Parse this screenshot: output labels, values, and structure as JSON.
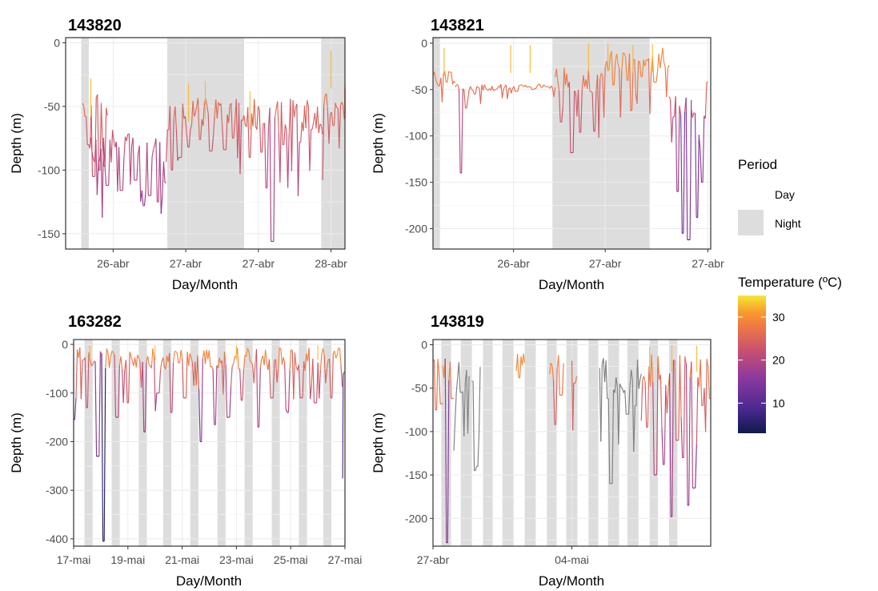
{
  "chart_data": [
    {
      "type": "line",
      "title": "143820",
      "xlabel": "Day/Month",
      "ylabel": "Depth (m)",
      "ylim": [
        -162,
        4
      ],
      "xlim": [
        0,
        1
      ],
      "yticks": [
        0,
        -50,
        -100,
        -150
      ],
      "xticks": [
        {
          "x": 0.17,
          "label": "26-abr"
        },
        {
          "x": 0.43,
          "label": "27-abr"
        },
        {
          "x": 0.69,
          "label": "27-abr"
        },
        {
          "x": 0.95,
          "label": "28-abr"
        }
      ],
      "night_periods": [
        [
          0.056,
          0.083
        ],
        [
          0.364,
          0.639
        ],
        [
          0.915,
          1.08
        ]
      ],
      "segments": [
        {
          "x0": 0.06,
          "x1": 0.15,
          "base": -50,
          "amp": 10,
          "dips": [
            [
              0.07,
              -58
            ],
            [
              0.08,
              -80
            ],
            [
              0.1,
              -105
            ],
            [
              0.12,
              -100
            ],
            [
              0.14,
              -97
            ]
          ]
        },
        {
          "x0": 0.09,
          "x1": 0.36,
          "base": -82,
          "amp": 14,
          "dips": [
            [
              0.15,
              -112
            ],
            [
              0.2,
              -116
            ],
            [
              0.25,
              -108
            ],
            [
              0.28,
              -128
            ],
            [
              0.3,
              -120
            ],
            [
              0.33,
              -125
            ],
            [
              0.36,
              -110
            ]
          ]
        },
        {
          "x0": 0.36,
          "x1": 0.62,
          "base": -58,
          "amp": 16,
          "dips": [
            [
              0.38,
              -100
            ],
            [
              0.41,
              -90
            ],
            [
              0.44,
              -82
            ],
            [
              0.48,
              -76
            ],
            [
              0.52,
              -85
            ],
            [
              0.57,
              -84
            ],
            [
              0.6,
              -75
            ]
          ]
        },
        {
          "x0": 0.62,
          "x1": 0.92,
          "base": -58,
          "amp": 14,
          "dips": [
            [
              0.66,
              -90
            ],
            [
              0.7,
              -86
            ],
            [
              0.72,
              -114
            ],
            [
              0.74,
              -156
            ],
            [
              0.78,
              -80
            ],
            [
              0.84,
              -78
            ],
            [
              0.88,
              -68
            ]
          ]
        },
        {
          "x0": 0.92,
          "x1": 1.08,
          "base": -46,
          "amp": 14,
          "dips": [
            [
              0.96,
              -65
            ],
            [
              1.0,
              -60
            ],
            [
              1.04,
              -58
            ]
          ]
        }
      ],
      "spikes": [
        [
          0.09,
          -28
        ],
        [
          0.44,
          -32
        ],
        [
          0.5,
          -30
        ],
        [
          0.66,
          -38
        ],
        [
          0.95,
          -6
        ],
        [
          1.01,
          -2
        ]
      ]
    },
    {
      "type": "line",
      "title": "143821",
      "xlabel": "Day/Month",
      "ylabel": "Depth (m)",
      "ylim": [
        -222,
        6
      ],
      "xlim": [
        0,
        1
      ],
      "yticks": [
        0,
        -50,
        -100,
        -150,
        -200
      ],
      "xticks": [
        {
          "x": 0.29,
          "label": "26-abr"
        },
        {
          "x": 0.62,
          "label": "27-abr"
        },
        {
          "x": 0.99,
          "label": "27-abr"
        }
      ],
      "night_periods": [
        [
          -0.01,
          0.025
        ],
        [
          0.43,
          0.78
        ]
      ],
      "segments": [
        {
          "x0": 0.0,
          "x1": 0.08,
          "base": -38,
          "amp": 8,
          "dips": [
            [
              0.02,
              -46
            ],
            [
              0.05,
              -42
            ]
          ]
        },
        {
          "x0": 0.08,
          "x1": 0.24,
          "base": -48,
          "amp": 4,
          "dips": [
            [
              0.1,
              -140
            ],
            [
              0.12,
              -70
            ],
            [
              0.15,
              -55
            ]
          ]
        },
        {
          "x0": 0.24,
          "x1": 0.44,
          "base": -47,
          "amp": 3,
          "dips": [
            [
              0.3,
              -52
            ],
            [
              0.36,
              -50
            ]
          ]
        },
        {
          "x0": 0.44,
          "x1": 0.62,
          "base": -40,
          "amp": 14,
          "dips": [
            [
              0.46,
              -85
            ],
            [
              0.5,
              -118
            ],
            [
              0.53,
              -96
            ],
            [
              0.58,
              -95
            ]
          ]
        },
        {
          "x0": 0.62,
          "x1": 0.85,
          "base": -18,
          "amp": 14,
          "dips": [
            [
              0.65,
              -45
            ],
            [
              0.7,
              -40
            ],
            [
              0.75,
              -36
            ],
            [
              0.8,
              -42
            ]
          ]
        },
        {
          "x0": 0.85,
          "x1": 0.93,
          "base": -68,
          "amp": 12,
          "dips": [
            [
              0.88,
              -160
            ],
            [
              0.9,
              -205
            ],
            [
              0.92,
              -212
            ]
          ]
        },
        {
          "x0": 0.93,
          "x1": 0.99,
          "base": -100,
          "amp": 30,
          "dips": [
            [
              0.95,
              -188
            ],
            [
              0.97,
              -150
            ],
            [
              0.99,
              -42
            ]
          ]
        }
      ],
      "spikes": [
        [
          0.04,
          -5
        ],
        [
          0.28,
          -2
        ],
        [
          0.35,
          -2
        ],
        [
          0.56,
          0
        ],
        [
          0.63,
          0
        ],
        [
          0.72,
          -2
        ],
        [
          0.79,
          -1
        ]
      ]
    },
    {
      "type": "line",
      "title": "163282",
      "xlabel": "Day/Month",
      "ylabel": "Depth (m)",
      "ylim": [
        -415,
        10
      ],
      "xlim": [
        0,
        1
      ],
      "yticks": [
        0,
        -100,
        -200,
        -300,
        -400
      ],
      "xticks": [
        {
          "x": 0.0,
          "label": "17-mai"
        },
        {
          "x": 0.2,
          "label": "19-mai"
        },
        {
          "x": 0.4,
          "label": "21-mai"
        },
        {
          "x": 0.6,
          "label": "23-mai"
        },
        {
          "x": 0.8,
          "label": "25-mai"
        },
        {
          "x": 1.0,
          "label": "27-mai"
        }
      ],
      "night_periods": [
        [
          -0.04,
          -0.01
        ],
        [
          0.04,
          0.07
        ],
        [
          0.14,
          0.17
        ],
        [
          0.24,
          0.27
        ],
        [
          0.33,
          0.36
        ],
        [
          0.43,
          0.46
        ],
        [
          0.53,
          0.56
        ],
        [
          0.63,
          0.66
        ],
        [
          0.73,
          0.76
        ],
        [
          0.83,
          0.86
        ],
        [
          0.92,
          0.95
        ]
      ],
      "segments": [
        {
          "x0": -0.01,
          "x1": 0.99,
          "base": -30,
          "amp": 24,
          "dips": [
            [
              0.0,
              -155
            ],
            [
              0.05,
              -130
            ],
            [
              0.09,
              -230
            ],
            [
              0.11,
              -405
            ],
            [
              0.16,
              -150
            ],
            [
              0.2,
              -120
            ],
            [
              0.26,
              -180
            ],
            [
              0.31,
              -100
            ],
            [
              0.36,
              -140
            ],
            [
              0.41,
              -110
            ],
            [
              0.47,
              -200
            ],
            [
              0.52,
              -165
            ],
            [
              0.57,
              -150
            ],
            [
              0.62,
              -115
            ],
            [
              0.68,
              -170
            ],
            [
              0.73,
              -110
            ],
            [
              0.79,
              -140
            ],
            [
              0.84,
              -110
            ],
            [
              0.89,
              -120
            ],
            [
              0.95,
              -110
            ]
          ]
        },
        {
          "x0": 0.99,
          "x1": 1.0,
          "base": -60,
          "amp": 5,
          "dips": [
            [
              0.99,
              -275
            ]
          ]
        }
      ],
      "spikes": [
        [
          0.06,
          -3
        ],
        [
          0.3,
          -2
        ],
        [
          0.6,
          -2
        ],
        [
          0.9,
          -2
        ]
      ]
    },
    {
      "type": "line",
      "title": "143819",
      "xlabel": "Day/Month",
      "ylabel": "Depth (m)",
      "ylim": [
        -232,
        6
      ],
      "xlim": [
        0,
        1
      ],
      "yticks": [
        0,
        -50,
        -100,
        -150,
        -200
      ],
      "xticks": [
        {
          "x": 0.0,
          "label": "27-abr"
        },
        {
          "x": 0.5,
          "label": "04-mai"
        }
      ],
      "night_periods": [
        [
          -0.05,
          -0.01
        ],
        [
          0.03,
          0.065
        ],
        [
          0.1,
          0.14
        ],
        [
          0.18,
          0.215
        ],
        [
          0.25,
          0.29
        ],
        [
          0.33,
          0.37
        ],
        [
          0.41,
          0.445
        ],
        [
          0.48,
          0.52
        ],
        [
          0.56,
          0.595
        ],
        [
          0.63,
          0.67
        ],
        [
          0.7,
          0.74
        ],
        [
          0.78,
          0.81
        ],
        [
          0.85,
          0.88
        ]
      ],
      "segments": [
        {
          "x0": 0.0,
          "x1": 0.035,
          "base": -25,
          "amp": 14,
          "dips": [
            [
              0.01,
              -75
            ],
            [
              0.03,
              -68
            ]
          ]
        },
        {
          "x0": 0.035,
          "x1": 0.075,
          "base": -30,
          "amp": 16,
          "dips": [
            [
              0.05,
              -228
            ],
            [
              0.07,
              -62
            ]
          ]
        },
        {
          "x0": 0.075,
          "x1": 0.13,
          "base": -35,
          "amp": 20,
          "missing": true,
          "dips": [
            [
              0.1,
              -55
            ]
          ]
        },
        {
          "x0": 0.14,
          "x1": 0.17,
          "base": -40,
          "amp": 20,
          "missing": true,
          "dips": [
            [
              0.15,
              -145
            ],
            [
              0.16,
              -140
            ]
          ]
        },
        {
          "x0": 0.3,
          "x1": 0.33,
          "base": -20,
          "amp": 14,
          "dips": [
            [
              0.31,
              -38
            ]
          ]
        },
        {
          "x0": 0.42,
          "x1": 0.47,
          "base": -30,
          "amp": 20,
          "dips": [
            [
              0.44,
              -92
            ],
            [
              0.46,
              -58
            ]
          ]
        },
        {
          "x0": 0.5,
          "x1": 0.52,
          "base": -30,
          "amp": 18,
          "dips": [
            [
              0.51,
              -44
            ]
          ]
        },
        {
          "x0": 0.6,
          "x1": 0.75,
          "base": -35,
          "amp": 22,
          "missing": true,
          "dips": [
            [
              0.63,
              -62
            ],
            [
              0.64,
              -160
            ],
            [
              0.7,
              -80
            ],
            [
              0.73,
              -70
            ]
          ]
        },
        {
          "x0": 0.75,
          "x1": 1.0,
          "base": -30,
          "amp": 22,
          "dips": [
            [
              0.77,
              -95
            ],
            [
              0.8,
              -150
            ],
            [
              0.83,
              -138
            ],
            [
              0.86,
              -198
            ],
            [
              0.88,
              -110
            ],
            [
              0.9,
              -130
            ],
            [
              0.92,
              -185
            ],
            [
              0.94,
              -165
            ],
            [
              0.97,
              -70
            ],
            [
              1.0,
              -62
            ]
          ]
        }
      ],
      "spikes": [
        [
          0.78,
          -2
        ],
        [
          0.86,
          -1
        ],
        [
          0.95,
          -1
        ],
        [
          1.0,
          -2
        ]
      ]
    }
  ],
  "legend": {
    "period_title": "Period",
    "period_items": [
      {
        "label": "Day",
        "fill": "#ffffff"
      },
      {
        "label": "Night",
        "fill": "#dddddd"
      }
    ],
    "temperature_title": "Temperature (ºC)",
    "temperature_ticks": [
      "30",
      "20",
      "10"
    ],
    "temperature_tick_values": [
      30,
      20,
      10
    ],
    "temperature_range": [
      3,
      35
    ],
    "missing_color": "#7f7f7f",
    "gradient": [
      "#0d1b4a",
      "#4b2991",
      "#8a3a9e",
      "#c8506f",
      "#ef7a43",
      "#f99b2e",
      "#f4e838"
    ]
  }
}
